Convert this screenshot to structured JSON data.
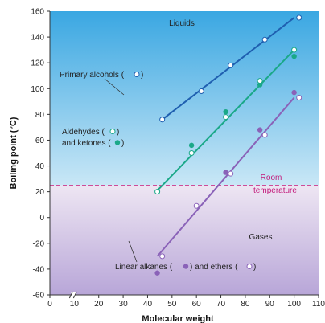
{
  "chart_data": {
    "type": "scatter",
    "xlabel": "Molecular weight",
    "ylabel": "Boiling point (°C)",
    "xlim": [
      0,
      110
    ],
    "ylim": [
      -60,
      160
    ],
    "x_ticks": [
      0,
      10,
      20,
      30,
      40,
      50,
      60,
      70,
      80,
      90,
      100,
      110
    ],
    "y_ticks": [
      -60,
      -40,
      -20,
      0,
      20,
      40,
      60,
      80,
      100,
      120,
      140,
      160
    ],
    "grid": false,
    "axis_break": true,
    "room_temperature": 25,
    "regions": {
      "liquids": {
        "label": "Liquids",
        "color": "#55b6e6"
      },
      "gases": {
        "label": "Gases",
        "color": "#b9a8d8"
      }
    },
    "room_temperature_label_line1": "Room",
    "room_temperature_label_line2": "temperature",
    "series": [
      {
        "label": "Primary alcohols (",
        "label_end": ")",
        "color": "#1f5fb0",
        "line": {
          "x": [
            46,
            100
          ],
          "y": [
            76,
            155
          ]
        },
        "open_points": [
          {
            "x": [
              46,
              62,
              74,
              88,
              102
            ],
            "y": [
              76,
              98,
              118,
              138,
              155
            ]
          }
        ],
        "filled_points": []
      },
      {
        "label": "Aldehydes (",
        "label_end": ")",
        "label2": "and ketones (",
        "label2_end": ")",
        "color": "#1aa888",
        "line": {
          "x": [
            44,
            100
          ],
          "y": [
            21,
            130
          ]
        },
        "open_points": [
          {
            "x": [
              44,
              58,
              72,
              86,
              100
            ],
            "y": [
              20,
              50,
              78,
              106,
              130
            ]
          }
        ],
        "filled_points": [
          {
            "x": [
              58,
              72,
              86,
              100
            ],
            "y": [
              56,
              82,
              103,
              125
            ]
          }
        ]
      },
      {
        "label": "Linear alkanes (",
        "label_mid": ") and ethers (",
        "label_end": ")",
        "color": "#8a62b8",
        "line": {
          "x": [
            44,
            100
          ],
          "y": [
            -30,
            93
          ]
        },
        "open_points": [
          {
            "x": [
              46,
              60,
              74,
              88,
              102
            ],
            "y": [
              -30,
              9,
              34,
              64,
              93
            ]
          }
        ],
        "filled_points": [
          {
            "x": [
              44,
              72,
              86,
              100
            ],
            "y": [
              -43,
              35,
              68,
              97
            ]
          }
        ]
      }
    ]
  }
}
